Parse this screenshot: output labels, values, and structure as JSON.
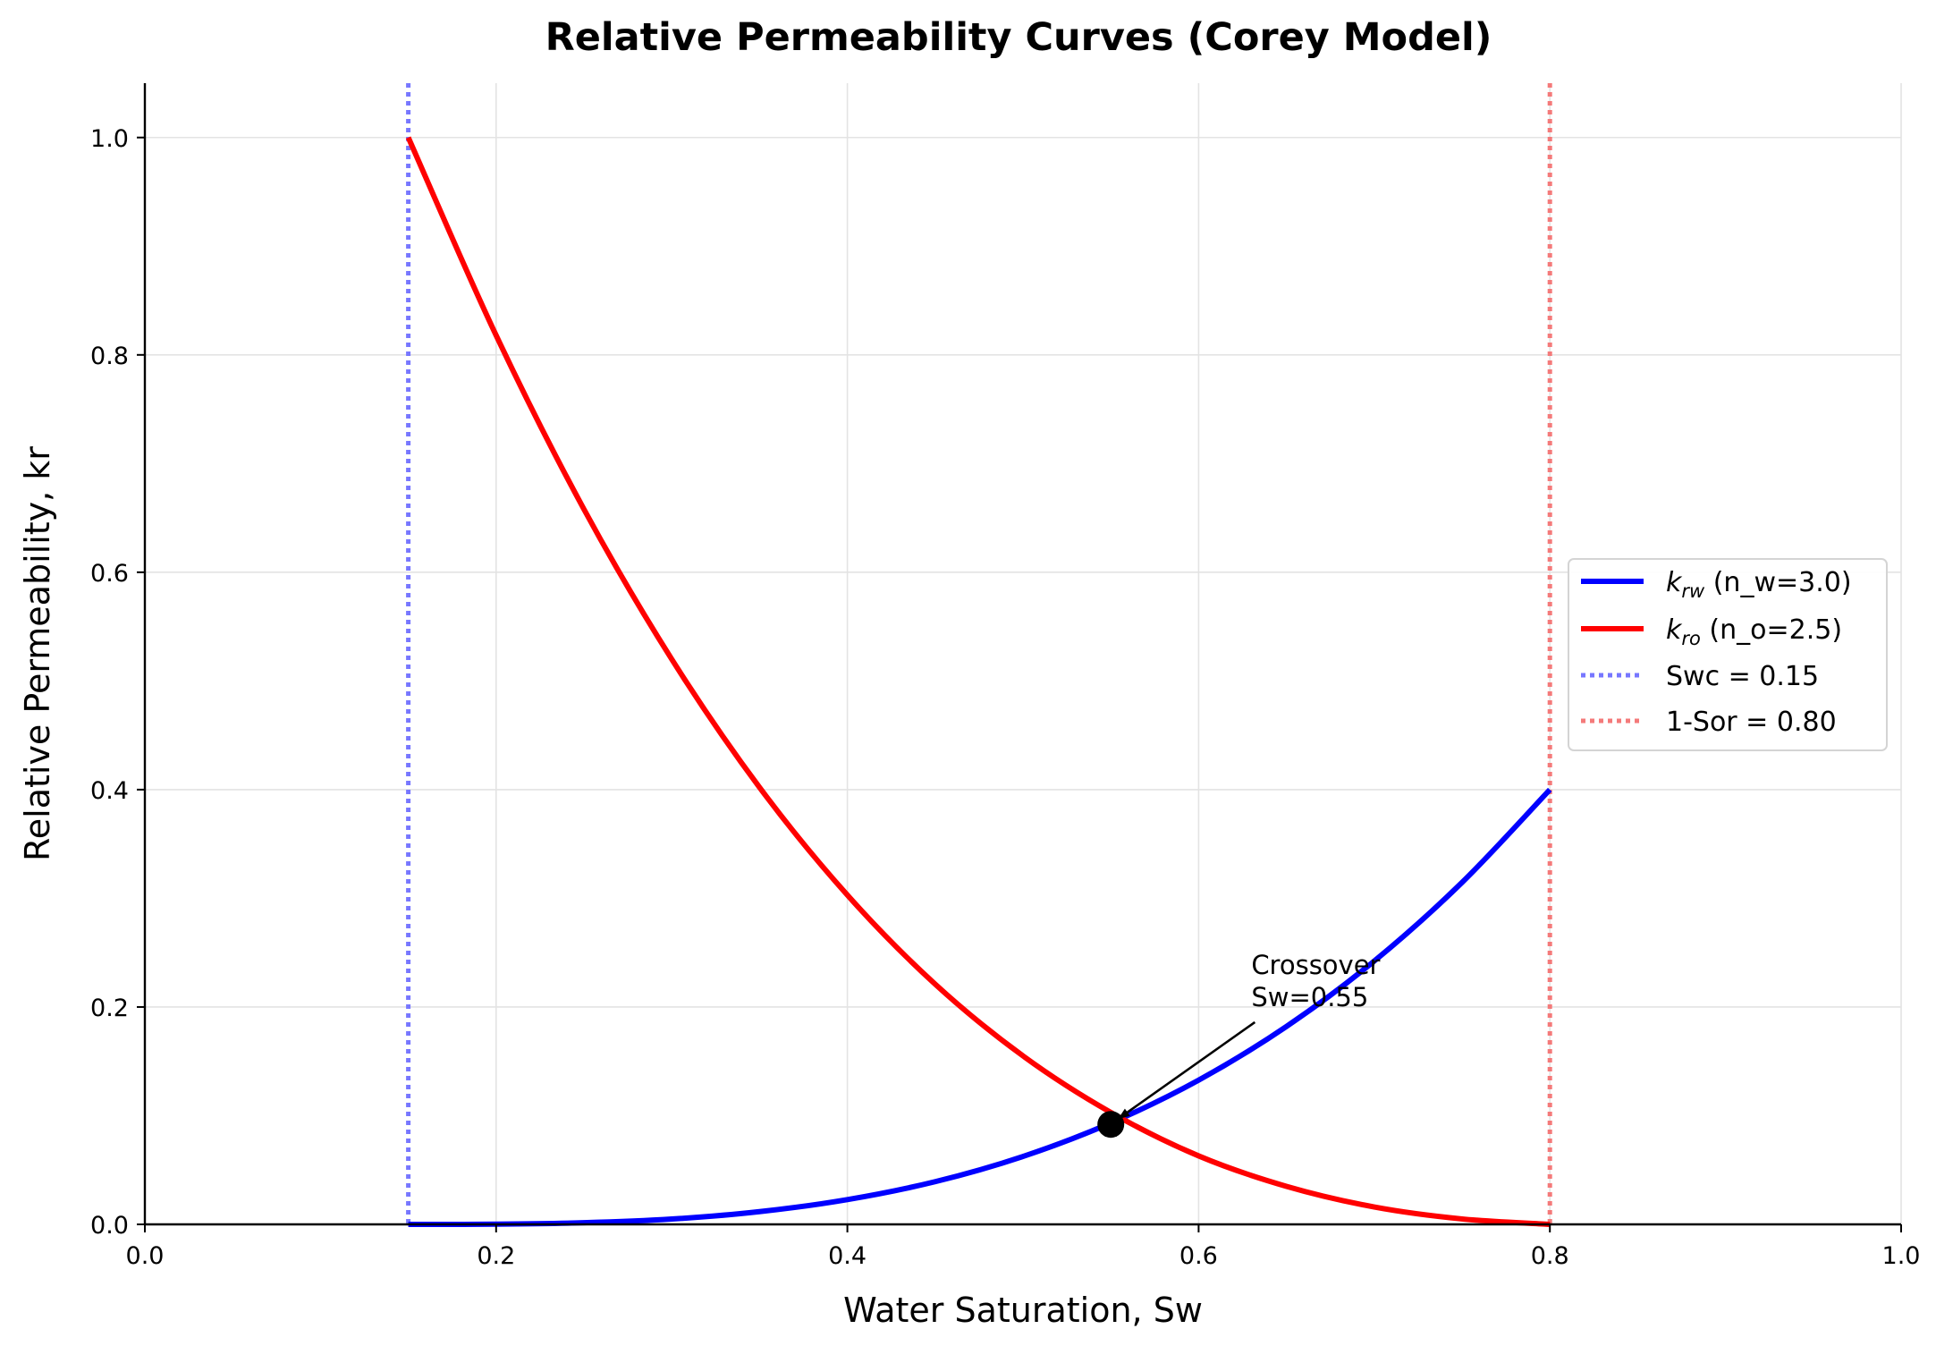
{
  "chart_data": {
    "type": "line",
    "title": "Relative Permeability Curves (Corey Model)",
    "xlabel": "Water Saturation, Sw",
    "ylabel": "Relative Permeability, kr",
    "xlim": [
      0.0,
      1.0
    ],
    "ylim": [
      0.0,
      1.05
    ],
    "xticks": [
      "0.0",
      "0.2",
      "0.4",
      "0.6",
      "0.8",
      "1.0"
    ],
    "yticks": [
      "0.0",
      "0.2",
      "0.4",
      "0.6",
      "0.8",
      "1.0"
    ],
    "grid": true,
    "legend_position": "center-right",
    "series": [
      {
        "name": "k_rw (n_w=3.0)",
        "legend_symbol": "k",
        "legend_subscript": "rw",
        "legend_suffix": " (n_w=3.0)",
        "color": "#0000ff",
        "x": [
          0.15,
          0.2,
          0.25,
          0.3,
          0.35,
          0.4,
          0.45,
          0.5,
          0.55,
          0.6,
          0.65,
          0.7,
          0.75,
          0.8
        ],
        "y": [
          0.0,
          0.0002,
          0.0015,
          0.0049,
          0.0117,
          0.0228,
          0.0393,
          0.0625,
          0.0933,
          0.1327,
          0.1821,
          0.2423,
          0.3146,
          0.4
        ]
      },
      {
        "name": "k_ro (n_o=2.5)",
        "legend_symbol": "k",
        "legend_subscript": "ro",
        "legend_suffix": " (n_o=2.5)",
        "color": "#ff0000",
        "x": [
          0.15,
          0.2,
          0.25,
          0.3,
          0.35,
          0.4,
          0.45,
          0.5,
          0.55,
          0.6,
          0.65,
          0.7,
          0.75,
          0.8
        ],
        "y": [
          1.0,
          0.818,
          0.658,
          0.52,
          0.402,
          0.303,
          0.221,
          0.155,
          0.103,
          0.063,
          0.035,
          0.016,
          0.005,
          0.0
        ]
      }
    ],
    "vlines": [
      {
        "name": "Swc = 0.15",
        "x": 0.15,
        "color": "#7777ff"
      },
      {
        "name": "1-Sor = 0.80",
        "x": 0.8,
        "color": "#f47a7a"
      }
    ],
    "marker": {
      "x": 0.55,
      "y": 0.092,
      "color": "#000000"
    },
    "annotation": {
      "line1": "Crossover",
      "line2": "Sw=0.55",
      "text_x": 0.63,
      "text_y": 0.2
    }
  }
}
